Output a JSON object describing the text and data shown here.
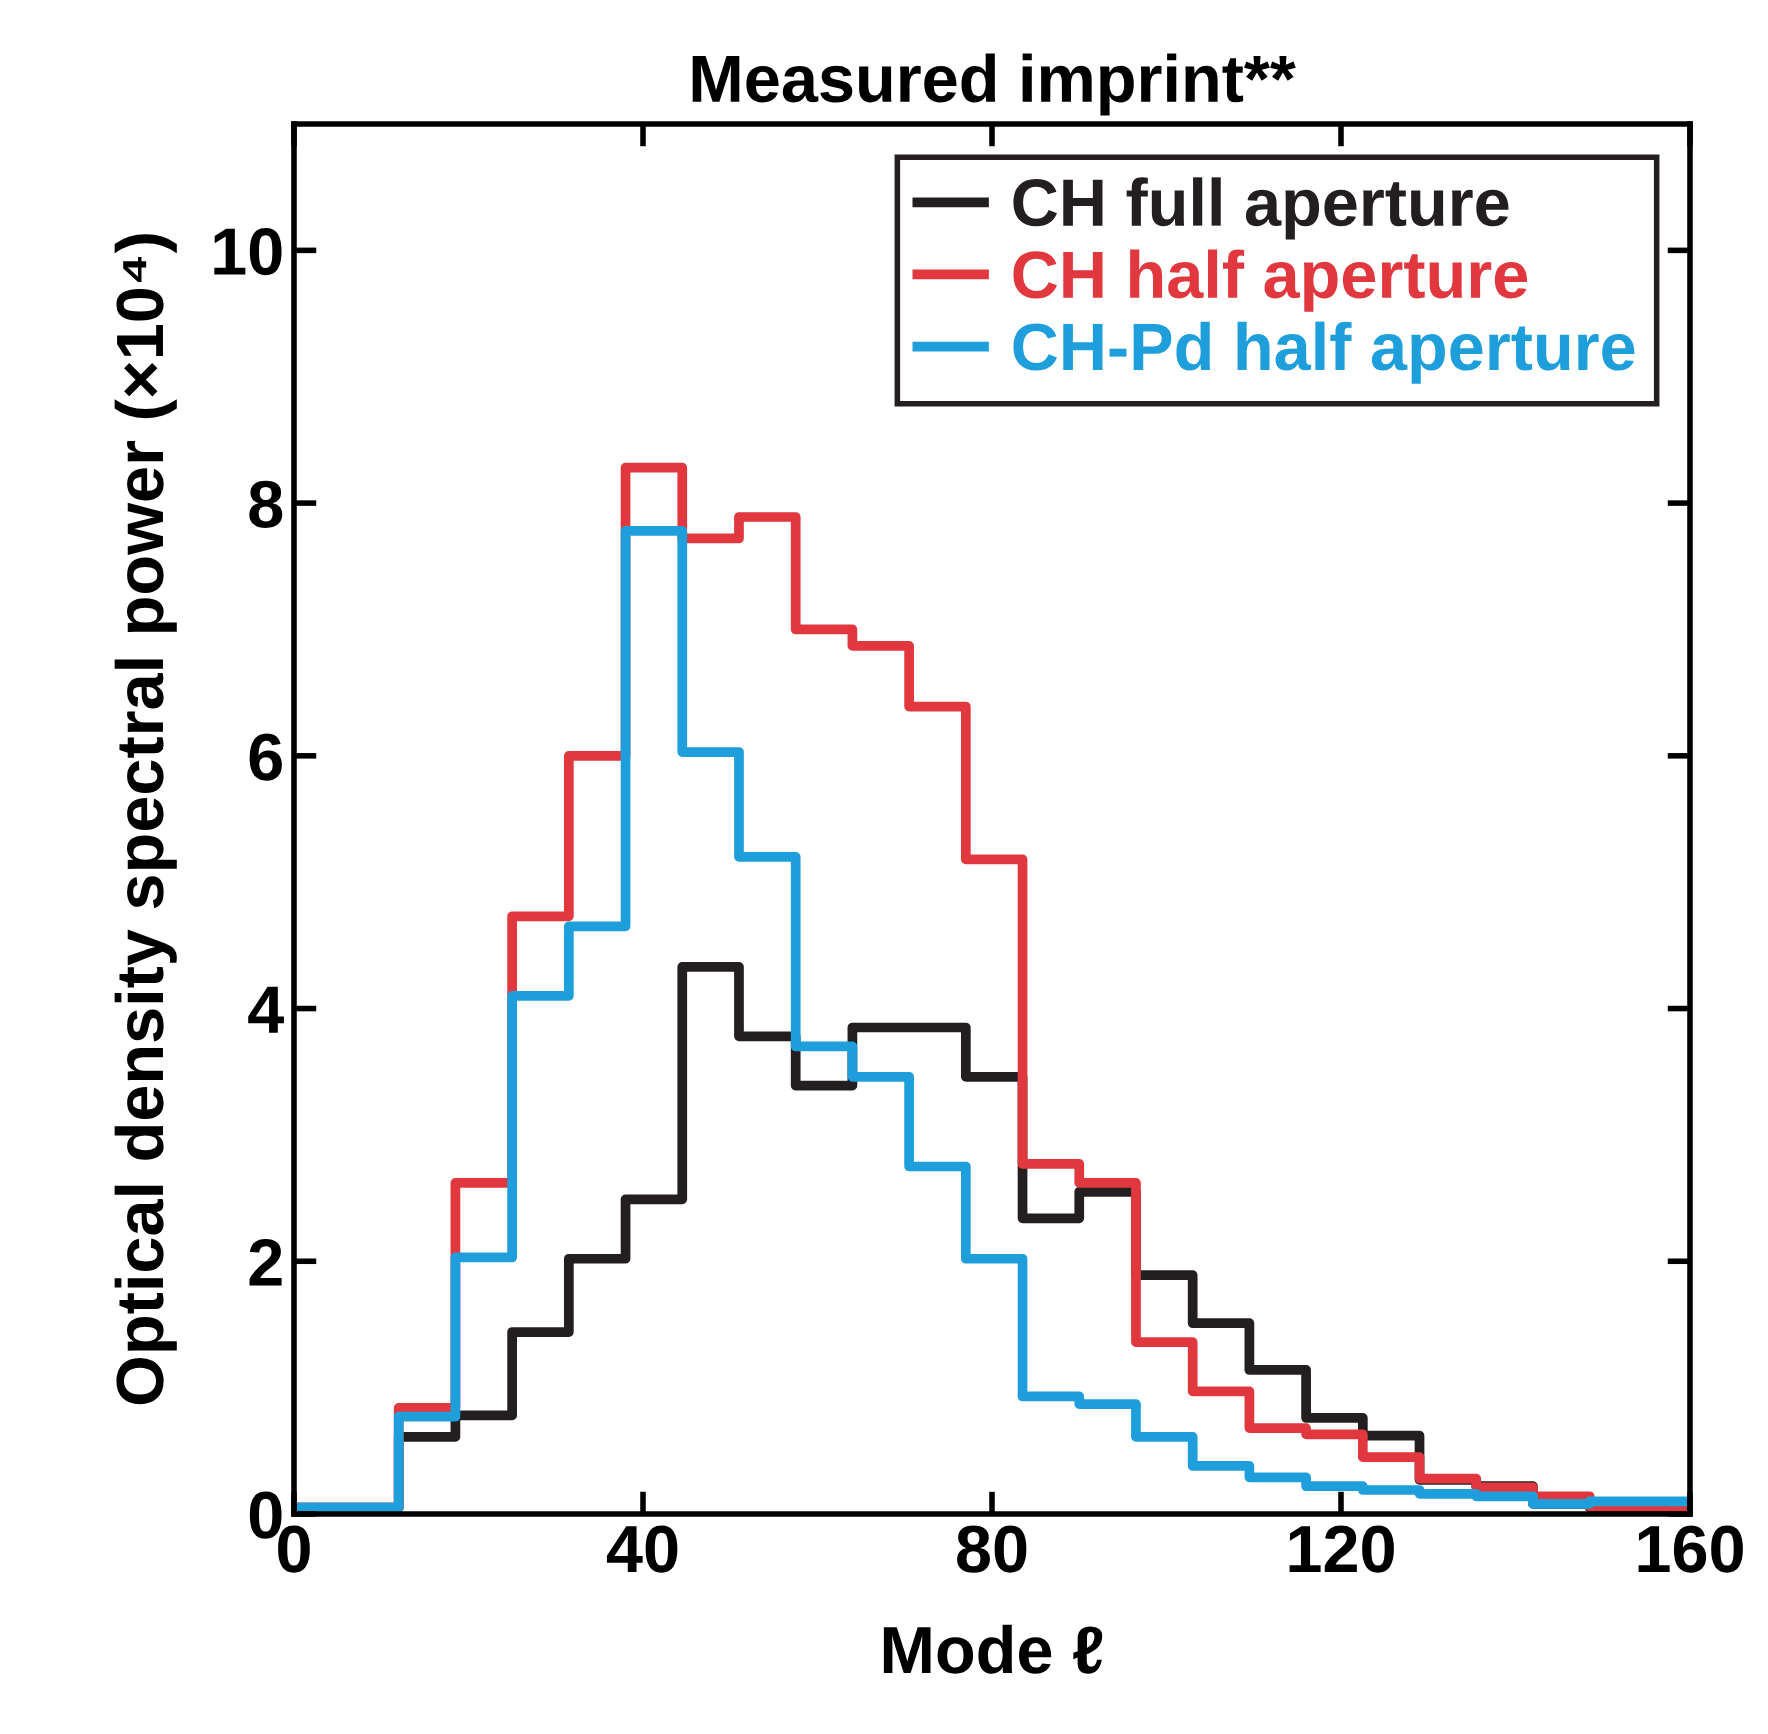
{
  "chart_data": {
    "type": "histogram",
    "title": "Measured imprint**",
    "xlabel": "Mode ℓ",
    "ylabel": "Optical density spectral power (×10⁴)",
    "bins": [
      0,
      12,
      18.5,
      25,
      31.5,
      38,
      44.5,
      51,
      57.5,
      64,
      70.5,
      77,
      83.5,
      90,
      96.5,
      103,
      109.5,
      116,
      122.5,
      129,
      135.5,
      142,
      148.5,
      160
    ],
    "series": [
      {
        "name": "CH full aperture",
        "color": "#231f20",
        "values": [
          0.05,
          0.61,
          0.78,
          1.44,
          2.02,
          2.49,
          4.33,
          3.78,
          3.39,
          3.85,
          3.85,
          3.46,
          2.34,
          2.55,
          1.89,
          1.51,
          1.14,
          0.76,
          0.62,
          0.27,
          0.22,
          0.08,
          0.05
        ]
      },
      {
        "name": "CH half aperture",
        "color": "#e0383e",
        "values": [
          0.05,
          0.84,
          2.62,
          4.73,
          6.0,
          8.28,
          7.72,
          7.89,
          7.0,
          6.87,
          6.39,
          5.18,
          2.77,
          2.62,
          1.36,
          0.97,
          0.68,
          0.63,
          0.45,
          0.28,
          0.21,
          0.14,
          0.06
        ]
      },
      {
        "name": "CH-Pd half aperture",
        "color": "#1e9fdb",
        "values": [
          0.05,
          0.77,
          2.03,
          4.1,
          4.65,
          7.78,
          6.03,
          5.2,
          3.7,
          3.46,
          2.75,
          2.02,
          0.93,
          0.87,
          0.61,
          0.38,
          0.29,
          0.22,
          0.19,
          0.16,
          0.14,
          0.08,
          0.1
        ]
      }
    ],
    "xlim": [
      0,
      160
    ],
    "xticks": [
      0,
      40,
      80,
      120,
      160
    ],
    "ylim": [
      0,
      11
    ],
    "yticks": [
      0,
      2,
      4,
      6,
      8,
      10
    ],
    "grid": false,
    "legend": "top right"
  }
}
